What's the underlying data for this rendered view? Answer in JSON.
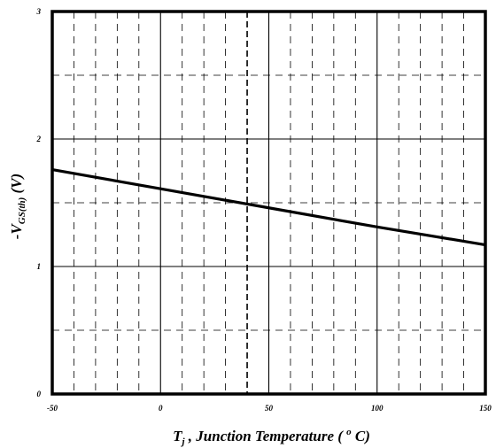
{
  "chart_data": {
    "type": "line",
    "xlim": [
      -50,
      150
    ],
    "ylim": [
      0,
      3
    ],
    "x_ticks": [
      "-50",
      "0",
      "50",
      "100",
      "150"
    ],
    "y_ticks": [
      "0",
      "1",
      "2",
      "3"
    ],
    "x_tick_values": [
      -50,
      0,
      50,
      100,
      150
    ],
    "y_tick_values": [
      0,
      1,
      2,
      3
    ],
    "x_minor_step": 10,
    "y_minor_step": 0.5,
    "highlight_x": 40,
    "grid": true,
    "series": [
      {
        "x": [
          -50,
          0,
          50,
          100,
          150
        ],
        "y": [
          1.76,
          1.61,
          1.46,
          1.31,
          1.17
        ]
      }
    ],
    "xlabel": {
      "main": "T",
      "sub": "j",
      "rest": " , Junction Temperature ( ",
      "sup": "o",
      "end": " C)"
    },
    "ylabel": {
      "main": "-V",
      "sub": "GS(th)",
      "rest": "  (V)"
    }
  }
}
